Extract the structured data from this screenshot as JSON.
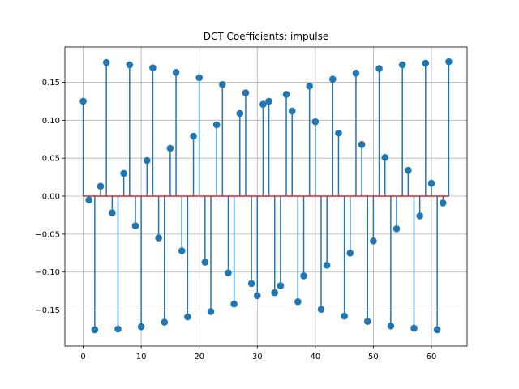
{
  "chart_data": {
    "type": "stem",
    "title": "DCT Coefficients: impulse",
    "xlabel": "",
    "ylabel": "",
    "xlim": [
      -3.15,
      66.15
    ],
    "ylim": [
      -0.1974,
      0.1964
    ],
    "x_ticks": [
      0,
      10,
      20,
      30,
      40,
      50,
      60
    ],
    "y_ticks": [
      -0.15,
      -0.1,
      -0.05,
      0.0,
      0.05,
      0.1,
      0.15
    ],
    "x_tick_labels": [
      "0",
      "10",
      "20",
      "30",
      "40",
      "50",
      "60"
    ],
    "y_tick_labels": [
      "−0.15",
      "−0.10",
      "−0.05",
      "0.00",
      "0.05",
      "0.10",
      "0.15"
    ],
    "grid": true,
    "baseline": 0,
    "colors": {
      "stem": "#1f77b4",
      "marker": "#1f77b4",
      "baseline": "#d62728",
      "grid": "#b0b0b0"
    },
    "x": [
      0,
      1,
      2,
      3,
      4,
      5,
      6,
      7,
      8,
      9,
      10,
      11,
      12,
      13,
      14,
      15,
      16,
      17,
      18,
      19,
      20,
      21,
      22,
      23,
      24,
      25,
      26,
      27,
      28,
      29,
      30,
      31,
      32,
      33,
      34,
      35,
      36,
      37,
      38,
      39,
      40,
      41,
      42,
      43,
      44,
      45,
      46,
      47,
      48,
      49,
      50,
      51,
      52,
      53,
      54,
      55,
      56,
      57,
      58,
      59,
      60,
      61,
      62,
      63
    ],
    "values": [
      0.125,
      -0.005,
      -0.176,
      0.013,
      0.176,
      -0.022,
      -0.175,
      0.03,
      0.173,
      -0.039,
      -0.172,
      0.047,
      0.169,
      -0.055,
      -0.166,
      0.063,
      0.163,
      -0.072,
      -0.159,
      0.079,
      0.156,
      -0.087,
      -0.152,
      0.094,
      0.147,
      -0.101,
      -0.142,
      0.109,
      0.136,
      -0.115,
      -0.131,
      0.121,
      0.125,
      -0.127,
      -0.118,
      0.134,
      0.112,
      -0.139,
      -0.105,
      0.145,
      0.098,
      -0.149,
      -0.091,
      0.154,
      0.083,
      -0.158,
      -0.075,
      0.162,
      0.068,
      -0.165,
      -0.059,
      0.168,
      0.051,
      -0.171,
      -0.043,
      0.173,
      0.034,
      -0.174,
      -0.026,
      0.175,
      0.017,
      -0.176,
      -0.009,
      0.177
    ]
  }
}
